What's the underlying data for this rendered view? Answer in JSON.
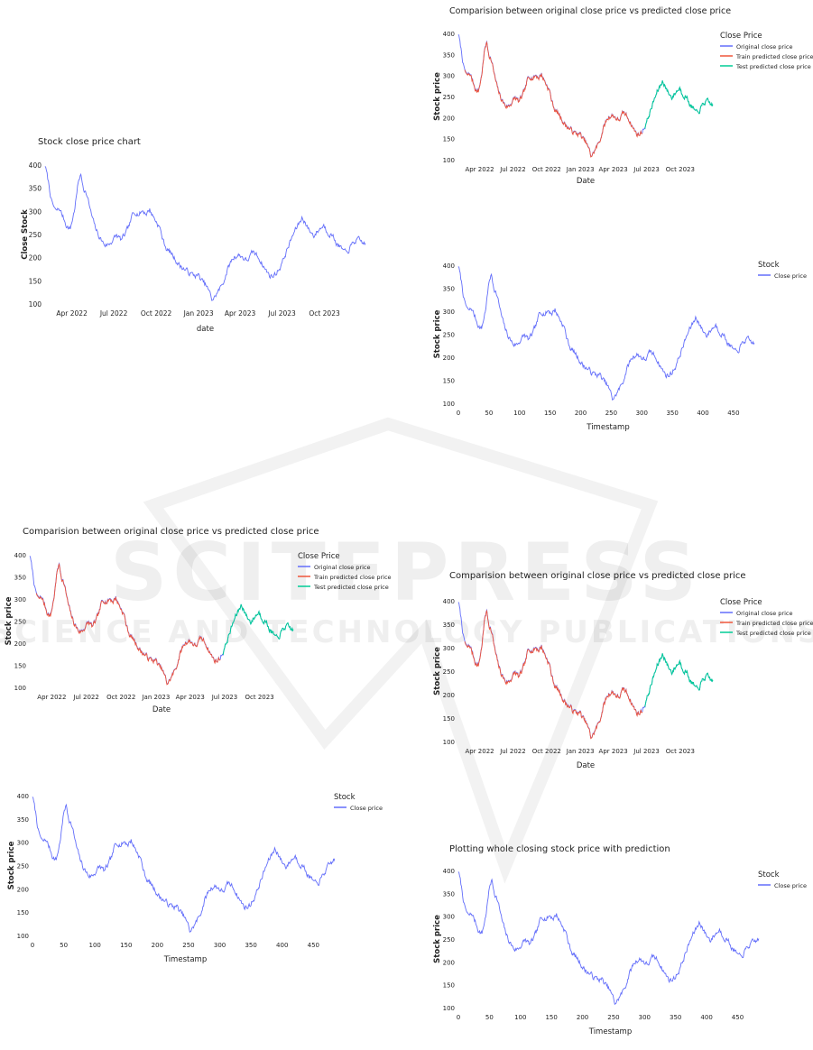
{
  "watermark": {
    "line1": "SCITEPRESS",
    "line2": "SCIENCE AND TECHNOLOGY PUBLICATIONS"
  },
  "colors": {
    "original": "#636efa",
    "train": "#ef553b",
    "test": "#00cc96",
    "grid": "#eeeeee"
  },
  "chart_data": [
    {
      "id": "chart1",
      "type": "line",
      "title": "Stock close price chart",
      "xlabel": "date",
      "ylabel": "Close Stock",
      "x_ticks": [
        "Apr 2022",
        "Jul 2022",
        "Oct 2022",
        "Jan 2023",
        "Apr 2023",
        "Jul 2023",
        "Oct 2023"
      ],
      "y_ticks": [
        "100",
        "150",
        "200",
        "250",
        "300",
        "350",
        "400"
      ],
      "ylim": [
        100,
        400
      ],
      "legend_title": "",
      "series": [
        {
          "role": "original",
          "name": ""
        }
      ],
      "x_range": [
        "2022-02-02",
        "2023-12-29"
      ],
      "x_extent": [
        0,
        484
      ],
      "grid": false
    },
    {
      "id": "chart2",
      "type": "line",
      "title": "Comparision between original close price vs predicted close price",
      "xlabel": "Date",
      "ylabel": "Stock price",
      "x_ticks": [
        "Apr 2022",
        "Jul 2022",
        "Oct 2022",
        "Jan 2023",
        "Apr 2023",
        "Jul 2023",
        "Oct 2023"
      ],
      "y_ticks": [
        "100",
        "150",
        "200",
        "250",
        "300",
        "350",
        "400"
      ],
      "ylim": [
        100,
        400
      ],
      "legend_title": "Close Price",
      "legend_position": "top-right",
      "series": [
        {
          "role": "original",
          "name": "Original close price"
        },
        {
          "role": "train",
          "name": "Train predicted close price"
        },
        {
          "role": "test",
          "name": "Test predicted close price"
        }
      ],
      "x_range": [
        "2022-02-02",
        "2023-12-29"
      ],
      "x_extent": [
        0,
        484
      ],
      "grid": false
    },
    {
      "id": "chart3",
      "type": "line",
      "title": "",
      "xlabel": "Timestamp",
      "ylabel": "Stock price",
      "x_ticks": [
        "0",
        "50",
        "100",
        "150",
        "200",
        "250",
        "300",
        "350",
        "400",
        "450"
      ],
      "y_ticks": [
        "100",
        "150",
        "200",
        "250",
        "300",
        "350",
        "400"
      ],
      "ylim": [
        100,
        400
      ],
      "xlim": [
        0,
        490
      ],
      "legend_title": "Stock",
      "legend_position": "top-right",
      "series": [
        {
          "role": "original",
          "name": "Close price"
        }
      ],
      "x_extent": [
        0,
        484
      ],
      "grid": false
    },
    {
      "id": "chart4",
      "type": "line",
      "title": "Comparision between original close price vs predicted close price",
      "xlabel": "Date",
      "ylabel": "Stock price",
      "x_ticks": [
        "Apr 2022",
        "Jul 2022",
        "Oct 2022",
        "Jan 2023",
        "Apr 2023",
        "Jul 2023",
        "Oct 2023"
      ],
      "y_ticks": [
        "100",
        "150",
        "200",
        "250",
        "300",
        "350",
        "400"
      ],
      "ylim": [
        100,
        400
      ],
      "legend_title": "Close Price",
      "legend_position": "top-right",
      "series": [
        {
          "role": "original",
          "name": "Original close price"
        },
        {
          "role": "train",
          "name": "Train predicted close price"
        },
        {
          "role": "test",
          "name": "Test predicted close price"
        }
      ],
      "x_range": [
        "2022-02-02",
        "2023-12-29"
      ],
      "x_extent": [
        0,
        484
      ],
      "grid": false
    },
    {
      "id": "chart5",
      "type": "line",
      "title": "Comparision between original close price vs predicted close price",
      "xlabel": "Date",
      "ylabel": "Stock price",
      "x_ticks": [
        "Apr 2022",
        "Jul 2022",
        "Oct 2022",
        "Jan 2023",
        "Apr 2023",
        "Jul 2023",
        "Oct 2023"
      ],
      "y_ticks": [
        "100",
        "150",
        "200",
        "250",
        "300",
        "350",
        "400"
      ],
      "ylim": [
        100,
        400
      ],
      "legend_title": "Close Price",
      "legend_position": "top-right",
      "series": [
        {
          "role": "original",
          "name": "Original close price"
        },
        {
          "role": "train",
          "name": "Train predicted close price"
        },
        {
          "role": "test",
          "name": "Test predicted close price"
        }
      ],
      "x_range": [
        "2022-02-02",
        "2023-12-29"
      ],
      "x_extent": [
        0,
        484
      ],
      "grid": false
    },
    {
      "id": "chart6",
      "type": "line",
      "title": "",
      "xlabel": "Timestamp",
      "ylabel": "Stock price",
      "x_ticks": [
        "0",
        "50",
        "100",
        "150",
        "200",
        "250",
        "300",
        "350",
        "400",
        "450"
      ],
      "y_ticks": [
        "100",
        "150",
        "200",
        "250",
        "300",
        "350",
        "400"
      ],
      "ylim": [
        100,
        400
      ],
      "xlim": [
        0,
        490
      ],
      "legend_title": "Stock",
      "legend_position": "top-right",
      "series": [
        {
          "role": "original",
          "name": "Close price"
        }
      ],
      "x_extent": [
        0,
        484
      ],
      "grid": false
    },
    {
      "id": "chart7",
      "type": "line",
      "title": "Plotting whole closing stock price with prediction",
      "xlabel": "Timestamp",
      "ylabel": "Stock price",
      "x_ticks": [
        "0",
        "50",
        "100",
        "150",
        "200",
        "250",
        "300",
        "350",
        "400",
        "450"
      ],
      "y_ticks": [
        "100",
        "150",
        "200",
        "250",
        "300",
        "350",
        "400"
      ],
      "ylim": [
        100,
        400
      ],
      "xlim": [
        0,
        490
      ],
      "legend_title": "Stock",
      "legend_position": "top-right",
      "series": [
        {
          "role": "original",
          "name": "Close price"
        }
      ],
      "x_extent": [
        0,
        484
      ],
      "grid": false
    }
  ],
  "price_path": [
    [
      0,
      400
    ],
    [
      6,
      355
    ],
    [
      10,
      320
    ],
    [
      16,
      300
    ],
    [
      22,
      305
    ],
    [
      28,
      285
    ],
    [
      33,
      268
    ],
    [
      38,
      262
    ],
    [
      44,
      300
    ],
    [
      48,
      340
    ],
    [
      51,
      370
    ],
    [
      54,
      378
    ],
    [
      58,
      352
    ],
    [
      62,
      340
    ],
    [
      66,
      318
    ],
    [
      70,
      292
    ],
    [
      75,
      268
    ],
    [
      80,
      250
    ],
    [
      85,
      238
    ],
    [
      90,
      228
    ],
    [
      96,
      228
    ],
    [
      102,
      238
    ],
    [
      108,
      248
    ],
    [
      115,
      238
    ],
    [
      122,
      252
    ],
    [
      128,
      272
    ],
    [
      132,
      292
    ],
    [
      137,
      300
    ],
    [
      142,
      294
    ],
    [
      147,
      302
    ],
    [
      153,
      296
    ],
    [
      158,
      304
    ],
    [
      163,
      290
    ],
    [
      168,
      278
    ],
    [
      173,
      266
    ],
    [
      178,
      238
    ],
    [
      184,
      218
    ],
    [
      190,
      210
    ],
    [
      197,
      196
    ],
    [
      204,
      182
    ],
    [
      210,
      176
    ],
    [
      217,
      168
    ],
    [
      224,
      162
    ],
    [
      231,
      162
    ],
    [
      238,
      148
    ],
    [
      244,
      138
    ],
    [
      249,
      122
    ],
    [
      252,
      110
    ],
    [
      256,
      114
    ],
    [
      260,
      124
    ],
    [
      265,
      135
    ],
    [
      270,
      150
    ],
    [
      275,
      172
    ],
    [
      281,
      192
    ],
    [
      286,
      202
    ],
    [
      292,
      206
    ],
    [
      298,
      202
    ],
    [
      304,
      194
    ],
    [
      309,
      200
    ],
    [
      314,
      212
    ],
    [
      319,
      206
    ],
    [
      324,
      198
    ],
    [
      329,
      184
    ],
    [
      334,
      172
    ],
    [
      339,
      162
    ],
    [
      344,
      160
    ],
    [
      349,
      166
    ],
    [
      355,
      180
    ],
    [
      361,
      200
    ],
    [
      367,
      222
    ],
    [
      373,
      244
    ],
    [
      378,
      260
    ],
    [
      383,
      272
    ],
    [
      388,
      286
    ],
    [
      392,
      280
    ],
    [
      396,
      266
    ],
    [
      401,
      256
    ],
    [
      406,
      248
    ],
    [
      411,
      256
    ],
    [
      416,
      264
    ],
    [
      421,
      270
    ],
    [
      426,
      258
    ],
    [
      431,
      252
    ],
    [
      436,
      244
    ],
    [
      441,
      230
    ],
    [
      446,
      222
    ],
    [
      451,
      214
    ],
    [
      455,
      208
    ],
    [
      460,
      220
    ],
    [
      465,
      230
    ],
    [
      470,
      238
    ],
    [
      475,
      236
    ],
    [
      480,
      232
    ],
    [
      484,
      230
    ]
  ],
  "train_end": 350,
  "test_start": 355,
  "tail6": [
    [
      455,
      208
    ],
    [
      462,
      220
    ],
    [
      470,
      240
    ],
    [
      478,
      254
    ],
    [
      484,
      264
    ]
  ],
  "tail7": [
    [
      455,
      208
    ],
    [
      462,
      224
    ],
    [
      470,
      238
    ],
    [
      478,
      244
    ],
    [
      484,
      250
    ]
  ]
}
